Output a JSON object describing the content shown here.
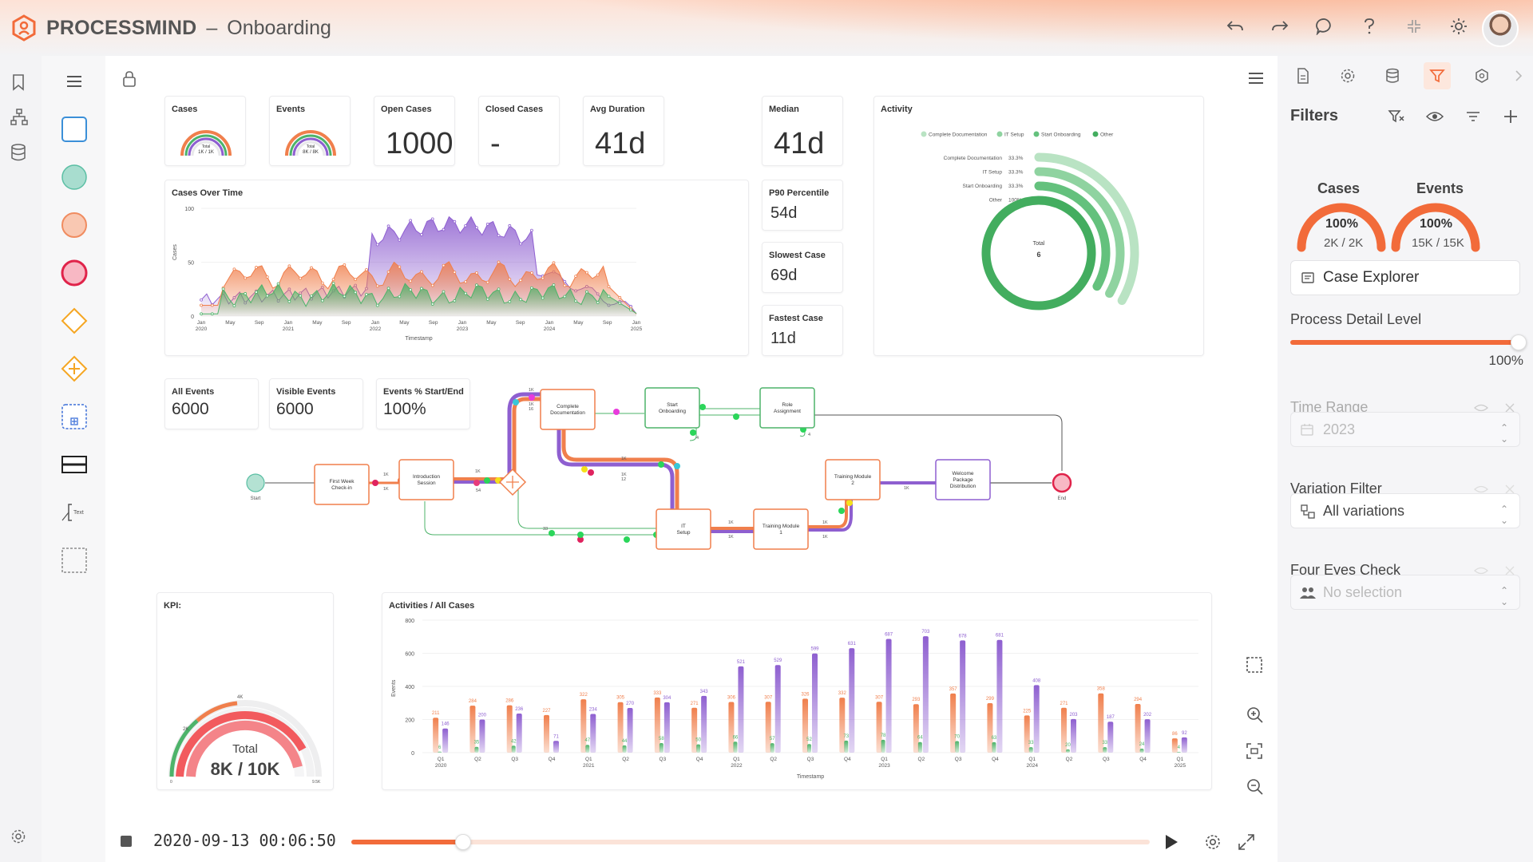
{
  "app": {
    "brand_bold": "PROCESSMIND",
    "separator": "–",
    "project": "Onboarding",
    "accent": "#f26b3a"
  },
  "kpis": {
    "cases": {
      "label": "Cases",
      "gauge_total": "Total",
      "gauge_value": "1K / 1K"
    },
    "events": {
      "label": "Events",
      "gauge_total": "Total",
      "gauge_value": "8K / 8K"
    },
    "open_cases": {
      "label": "Open Cases",
      "value": "1000"
    },
    "closed_cases": {
      "label": "Closed Cases",
      "value": "-"
    },
    "avg_duration": {
      "label": "Avg Duration",
      "value": "41d"
    },
    "median": {
      "label": "Median",
      "value": "41d"
    },
    "p90": {
      "label": "P90 Percentile",
      "value": "54d"
    },
    "slowest": {
      "label": "Slowest Case",
      "value": "69d"
    },
    "fastest": {
      "label": "Fastest Case",
      "value": "11d"
    },
    "all_events": {
      "label": "All Events",
      "value": "6000"
    },
    "visible_events": {
      "label": "Visible Events",
      "value": "6000"
    },
    "events_pct": {
      "label": "Events % Start/End",
      "value": "100%"
    },
    "kpi": {
      "label": "KPI:",
      "total_label": "Total",
      "total_value": "8K / 10K",
      "tick_4k": "4K",
      "tick_2k": "2K",
      "tick_0": "0",
      "tick_max": "9.5K"
    }
  },
  "activity": {
    "title": "Activity",
    "legend": [
      "Complete Documentation",
      "IT Setup",
      "Start Onboarding",
      "Other"
    ],
    "rows": [
      {
        "name": "Complete Documentation",
        "pct": "33.3%"
      },
      {
        "name": "IT Setup",
        "pct": "33.3%"
      },
      {
        "name": "Start Onboarding",
        "pct": "33.3%"
      },
      {
        "name": "Other",
        "pct": "100%"
      }
    ],
    "total_label": "Total",
    "total_value": "6"
  },
  "cases_over_time": {
    "title": "Cases Over Time",
    "ylabel": "Cases",
    "xlabel": "Timestamp",
    "y_ticks": [
      "100",
      "50",
      "0"
    ],
    "x_ticks": [
      {
        "m": "Jan",
        "y": "2020"
      },
      {
        "m": "May",
        "y": ""
      },
      {
        "m": "Sep",
        "y": ""
      },
      {
        "m": "Jan",
        "y": "2021"
      },
      {
        "m": "May",
        "y": ""
      },
      {
        "m": "Sep",
        "y": ""
      },
      {
        "m": "Jan",
        "y": "2022"
      },
      {
        "m": "May",
        "y": ""
      },
      {
        "m": "Sep",
        "y": ""
      },
      {
        "m": "Jan",
        "y": "2023"
      },
      {
        "m": "May",
        "y": ""
      },
      {
        "m": "Sep",
        "y": ""
      },
      {
        "m": "Jan",
        "y": "2024"
      },
      {
        "m": "May",
        "y": ""
      },
      {
        "m": "Sep",
        "y": ""
      },
      {
        "m": "Jan",
        "y": "2025"
      }
    ]
  },
  "process_map": {
    "nodes": {
      "start": "Start",
      "first_week": "First Week Check-in",
      "intro": "Introduction Session",
      "complete_doc": "Complete Documentation",
      "start_onb": "Start Onboarding",
      "role": "Role Assignment",
      "it_setup": "IT Setup",
      "training1": "Training Module 1",
      "training2": "Training Module 2",
      "welcome": "Welcome Package Distribution",
      "end": "End"
    },
    "edge_labels": {
      "k1": "1K",
      "k12": "12",
      "k54": "54",
      "k33": "33",
      "k4": "4",
      "k16": "16"
    }
  },
  "activities_chart_title": "Activities / All Cases",
  "chart_data": {
    "type": "bar",
    "title": "Activities / All Cases",
    "xlabel": "Timestamp",
    "ylabel": "Events",
    "ylim": [
      0,
      800
    ],
    "y_ticks": [
      "800",
      "600",
      "400",
      "200",
      "0"
    ],
    "categories": [
      "Q1 2020",
      "Q2",
      "Q3",
      "Q4",
      "Q1 2021",
      "Q2",
      "Q3",
      "Q4",
      "Q1 2022",
      "Q2",
      "Q3",
      "Q4",
      "Q1 2023",
      "Q2",
      "Q3",
      "Q4",
      "Q1 2024",
      "Q2",
      "Q3",
      "Q4",
      "Q1 2025"
    ],
    "cat_q": [
      "Q1",
      "Q2",
      "Q3",
      "Q4",
      "Q1",
      "Q2",
      "Q3",
      "Q4",
      "Q1",
      "Q2",
      "Q3",
      "Q4",
      "Q1",
      "Q2",
      "Q3",
      "Q4",
      "Q1",
      "Q2",
      "Q3",
      "Q4",
      "Q1"
    ],
    "cat_y": [
      "2020",
      "",
      "",
      "",
      "2021",
      "",
      "",
      "",
      "2022",
      "",
      "",
      "",
      "2023",
      "",
      "",
      "",
      "2024",
      "",
      "",
      "",
      "2025"
    ],
    "series": [
      {
        "color": "#f07f4c",
        "values": [
          211,
          284,
          286,
          227,
          322,
          305,
          333,
          271,
          306,
          307,
          326,
          332,
          307,
          293,
          357,
          299,
          225,
          271,
          358,
          294,
          86
        ]
      },
      {
        "color": "#8e5fd0",
        "values": [
          146,
          200,
          236,
          71,
          234,
          270,
          304,
          343,
          521,
          529,
          599,
          631,
          687,
          703,
          678,
          681,
          408,
          203,
          187,
          202,
          92
        ]
      },
      {
        "color": "#4db36a",
        "values": [
          6,
          35,
          42,
          null,
          47,
          44,
          58,
          50,
          66,
          57,
          52,
          73,
          78,
          64,
          70,
          63,
          33,
          20,
          33,
          24,
          4
        ]
      }
    ]
  },
  "filters": {
    "title": "Filters",
    "cases_label": "Cases",
    "cases_pct": "100%",
    "cases_count": "2K / 2K",
    "events_label": "Events",
    "events_pct": "100%",
    "events_count": "15K / 15K",
    "case_explorer": "Case Explorer",
    "detail_label": "Process Detail Level",
    "detail_value": "100%",
    "time_range_label": "Time Range",
    "time_range_value": "2023",
    "variation_label": "Variation Filter",
    "variation_value": "All variations",
    "four_eyes_label": "Four Eyes Check",
    "four_eyes_value": "No selection"
  },
  "playback": {
    "timestamp": "2020-09-13 00:06:50",
    "progress": 0.14
  }
}
